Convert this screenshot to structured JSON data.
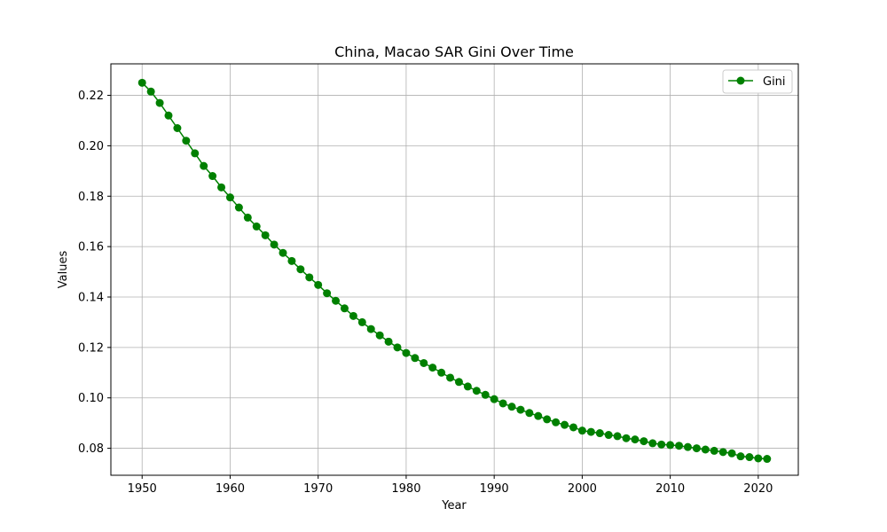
{
  "chart_data": {
    "type": "line",
    "title": "China, Macao SAR Gini Over Time",
    "xlabel": "Year",
    "ylabel": "Values",
    "xlim": [
      1946.45,
      2024.55
    ],
    "ylim": [
      0.0693,
      0.2325
    ],
    "xticks": [
      1950,
      1960,
      1970,
      1980,
      1990,
      2000,
      2010,
      2020
    ],
    "yticks": [
      0.08,
      0.1,
      0.12,
      0.14,
      0.16,
      0.18,
      0.2,
      0.22
    ],
    "ytick_labels": [
      "0.08",
      "0.10",
      "0.12",
      "0.14",
      "0.16",
      "0.18",
      "0.20",
      "0.22"
    ],
    "grid": true,
    "legend_position": "top-right",
    "series": [
      {
        "name": "Gini",
        "color": "#008000",
        "marker": "circle",
        "x": [
          1950,
          1951,
          1952,
          1953,
          1954,
          1955,
          1956,
          1957,
          1958,
          1959,
          1960,
          1961,
          1962,
          1963,
          1964,
          1965,
          1966,
          1967,
          1968,
          1969,
          1970,
          1971,
          1972,
          1973,
          1974,
          1975,
          1976,
          1977,
          1978,
          1979,
          1980,
          1981,
          1982,
          1983,
          1984,
          1985,
          1986,
          1987,
          1988,
          1989,
          1990,
          1991,
          1992,
          1993,
          1994,
          1995,
          1996,
          1997,
          1998,
          1999,
          2000,
          2001,
          2002,
          2003,
          2004,
          2005,
          2006,
          2007,
          2008,
          2009,
          2010,
          2011,
          2012,
          2013,
          2014,
          2015,
          2016,
          2017,
          2018,
          2019,
          2020,
          2021
        ],
        "values": [
          0.225,
          0.2215,
          0.217,
          0.212,
          0.207,
          0.202,
          0.197,
          0.192,
          0.188,
          0.1835,
          0.1795,
          0.1755,
          0.1715,
          0.168,
          0.1645,
          0.1608,
          0.1575,
          0.1543,
          0.151,
          0.1478,
          0.1448,
          0.1415,
          0.1385,
          0.1355,
          0.1325,
          0.13,
          0.1273,
          0.1248,
          0.1223,
          0.12,
          0.1178,
          0.1158,
          0.1138,
          0.112,
          0.11,
          0.108,
          0.1063,
          0.1045,
          0.1028,
          0.1012,
          0.0995,
          0.0978,
          0.0965,
          0.0953,
          0.094,
          0.0928,
          0.0915,
          0.0903,
          0.0893,
          0.0883,
          0.087,
          0.0865,
          0.086,
          0.0853,
          0.0848,
          0.084,
          0.0835,
          0.0828,
          0.082,
          0.0815,
          0.0813,
          0.081,
          0.0805,
          0.08,
          0.0795,
          0.079,
          0.0785,
          0.078,
          0.0768,
          0.0765,
          0.076,
          0.0758
        ]
      }
    ]
  }
}
